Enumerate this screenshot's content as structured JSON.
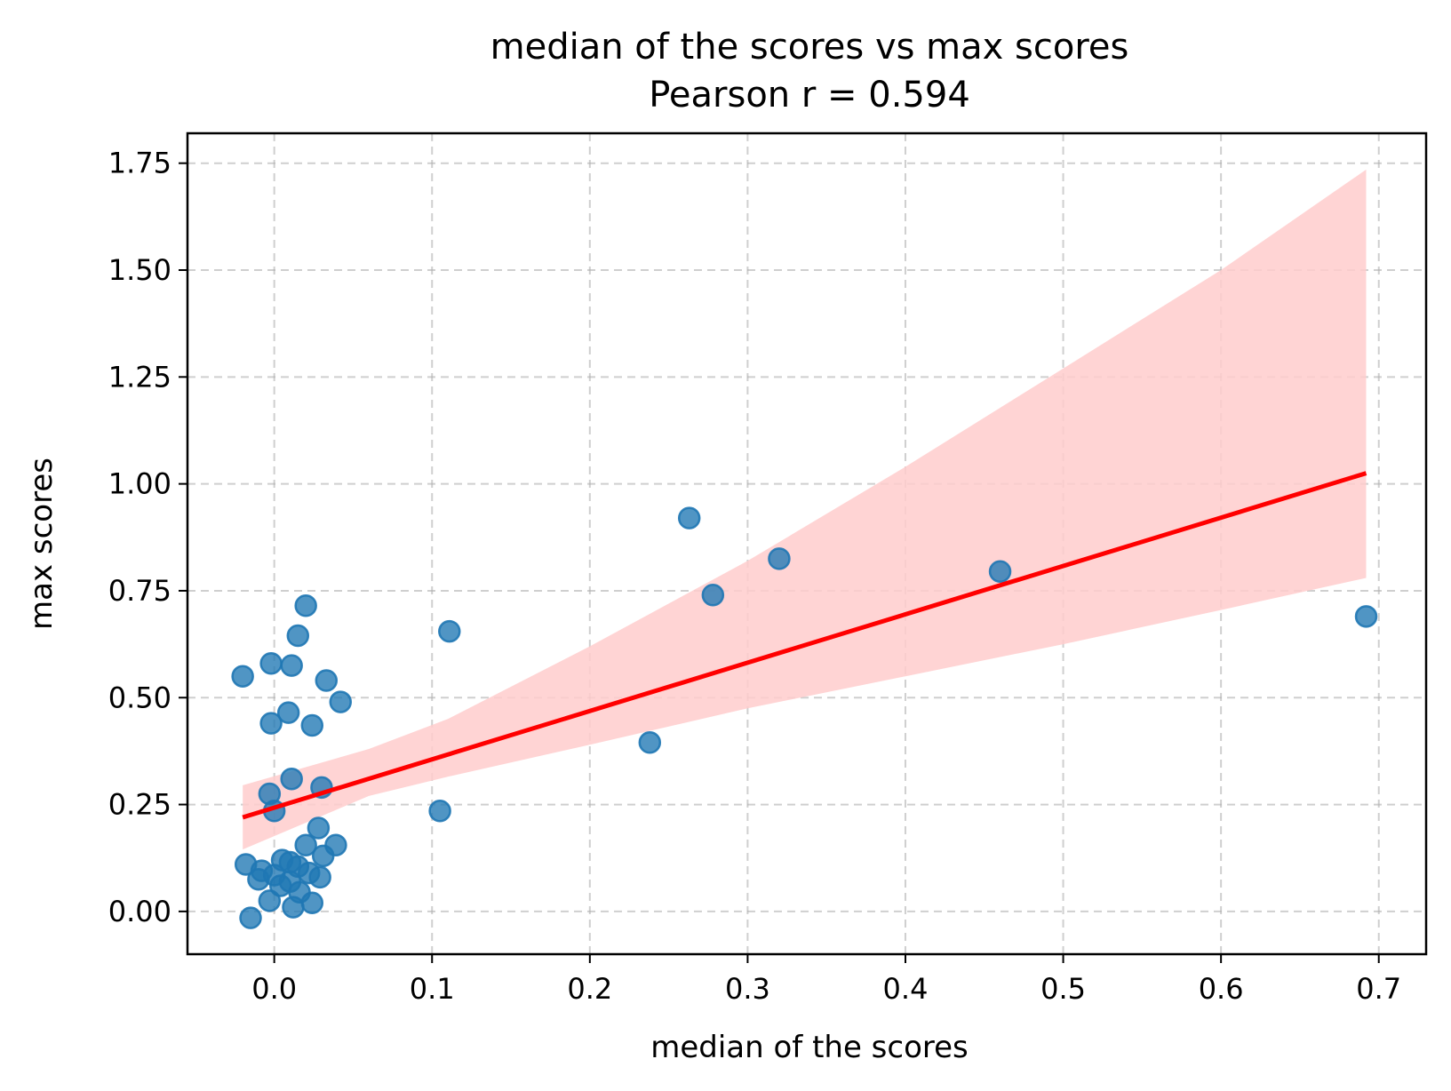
{
  "chart_data": {
    "type": "scatter",
    "title": "median of the scores vs max scores",
    "subtitle": "Pearson r = 0.594",
    "xlabel": "median of the scores",
    "ylabel": "max scores",
    "xlim": [
      -0.055,
      0.73
    ],
    "ylim": [
      -0.1,
      1.82
    ],
    "xticks": [
      0.0,
      0.1,
      0.2,
      0.3,
      0.4,
      0.5,
      0.6,
      0.7
    ],
    "xtick_labels": [
      "0.0",
      "0.1",
      "0.2",
      "0.3",
      "0.4",
      "0.5",
      "0.6",
      "0.7"
    ],
    "yticks": [
      0.0,
      0.25,
      0.5,
      0.75,
      1.0,
      1.25,
      1.5,
      1.75
    ],
    "ytick_labels": [
      "0.00",
      "0.25",
      "0.50",
      "0.75",
      "1.00",
      "1.25",
      "1.50",
      "1.75"
    ],
    "grid": true,
    "colors": {
      "points": "#1f77b4",
      "fit_line": "#ff0000",
      "ci_band": "#ffcccc"
    },
    "points": [
      {
        "x": -0.02,
        "y": 0.55
      },
      {
        "x": -0.002,
        "y": 0.58
      },
      {
        "x": 0.011,
        "y": 0.575
      },
      {
        "x": 0.015,
        "y": 0.645
      },
      {
        "x": 0.02,
        "y": 0.715
      },
      {
        "x": 0.033,
        "y": 0.54
      },
      {
        "x": 0.042,
        "y": 0.49
      },
      {
        "x": -0.002,
        "y": 0.44
      },
      {
        "x": 0.009,
        "y": 0.465
      },
      {
        "x": 0.024,
        "y": 0.435
      },
      {
        "x": 0.011,
        "y": 0.31
      },
      {
        "x": 0.03,
        "y": 0.29
      },
      {
        "x": -0.003,
        "y": 0.275
      },
      {
        "x": 0.0,
        "y": 0.235
      },
      {
        "x": 0.028,
        "y": 0.195
      },
      {
        "x": 0.02,
        "y": 0.155
      },
      {
        "x": 0.039,
        "y": 0.155
      },
      {
        "x": 0.031,
        "y": 0.13
      },
      {
        "x": -0.018,
        "y": 0.11
      },
      {
        "x": -0.008,
        "y": 0.095
      },
      {
        "x": -0.01,
        "y": 0.075
      },
      {
        "x": 0.0,
        "y": 0.085
      },
      {
        "x": 0.005,
        "y": 0.12
      },
      {
        "x": 0.01,
        "y": 0.115
      },
      {
        "x": 0.015,
        "y": 0.105
      },
      {
        "x": 0.004,
        "y": 0.06
      },
      {
        "x": 0.01,
        "y": 0.07
      },
      {
        "x": 0.022,
        "y": 0.09
      },
      {
        "x": 0.029,
        "y": 0.08
      },
      {
        "x": 0.016,
        "y": 0.045
      },
      {
        "x": -0.003,
        "y": 0.025
      },
      {
        "x": 0.012,
        "y": 0.01
      },
      {
        "x": 0.024,
        "y": 0.02
      },
      {
        "x": -0.015,
        "y": -0.015
      },
      {
        "x": 0.105,
        "y": 0.235
      },
      {
        "x": 0.111,
        "y": 0.655
      },
      {
        "x": 0.238,
        "y": 0.395
      },
      {
        "x": 0.263,
        "y": 0.92
      },
      {
        "x": 0.278,
        "y": 0.74
      },
      {
        "x": 0.32,
        "y": 0.825
      },
      {
        "x": 0.46,
        "y": 0.795
      },
      {
        "x": 0.692,
        "y": 0.69
      }
    ],
    "regression": {
      "x": [
        -0.02,
        0.692
      ],
      "y": [
        0.22,
        1.025
      ]
    },
    "ci_band": {
      "x": [
        -0.02,
        0.06,
        0.11,
        0.2,
        0.3,
        0.4,
        0.5,
        0.6,
        0.692
      ],
      "lower": [
        0.145,
        0.27,
        0.315,
        0.39,
        0.475,
        0.55,
        0.625,
        0.705,
        0.78
      ],
      "upper": [
        0.295,
        0.38,
        0.45,
        0.62,
        0.82,
        1.04,
        1.27,
        1.5,
        1.735
      ]
    }
  }
}
